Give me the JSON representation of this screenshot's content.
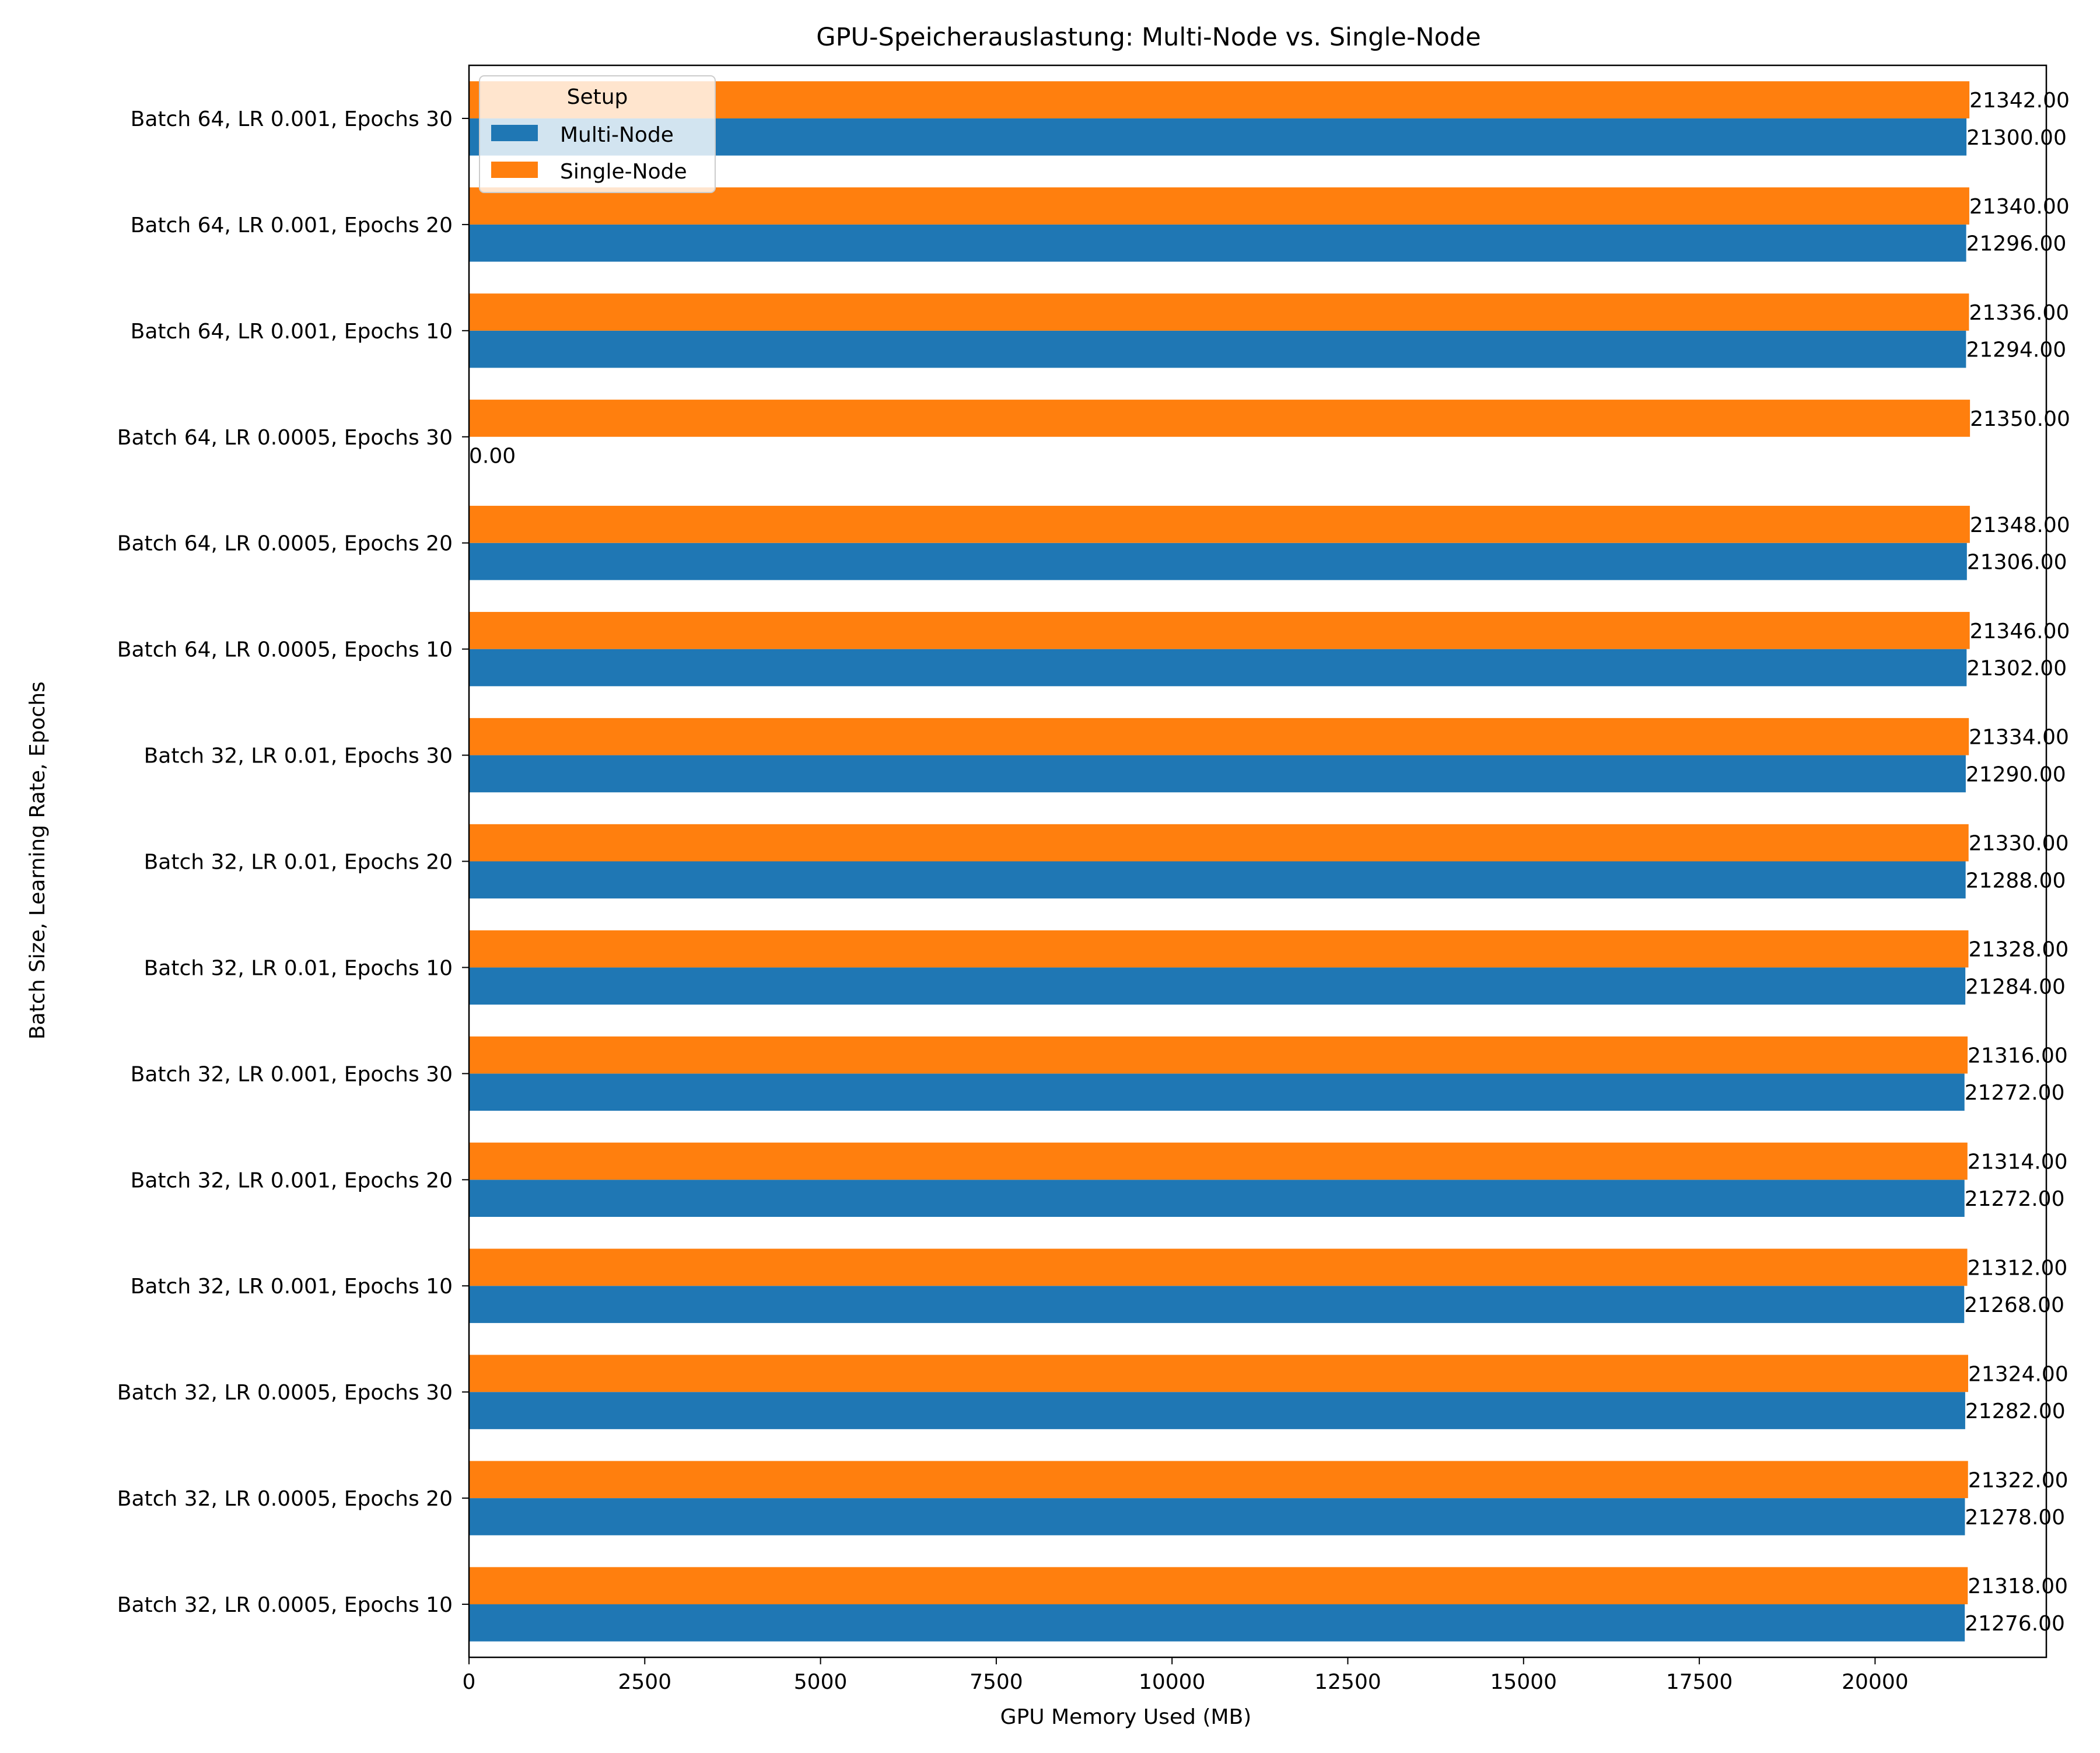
{
  "chart_data": {
    "type": "bar",
    "orientation": "horizontal",
    "title": "GPU-Speicherauslastung: Multi-Node vs. Single-Node",
    "xlabel": "GPU Memory Used (MB)",
    "ylabel": "Batch Size, Learning Rate, Epochs",
    "xlim": [
      0,
      22436
    ],
    "xticks": [
      0,
      2500,
      5000,
      7500,
      10000,
      12500,
      15000,
      17500,
      20000
    ],
    "xtick_labels": [
      "0",
      "2500",
      "5000",
      "7500",
      "10000",
      "12500",
      "15000",
      "17500",
      "20000"
    ],
    "grid": false,
    "legend": {
      "title": "Setup",
      "placement": "top-left"
    },
    "categories": [
      "Batch 32, LR 0.0005, Epochs 10",
      "Batch 32, LR 0.0005, Epochs 20",
      "Batch 32, LR 0.0005, Epochs 30",
      "Batch 32, LR 0.001, Epochs 10",
      "Batch 32, LR 0.001, Epochs 20",
      "Batch 32, LR 0.001, Epochs 30",
      "Batch 32, LR 0.01, Epochs 10",
      "Batch 32, LR 0.01, Epochs 20",
      "Batch 32, LR 0.01, Epochs 30",
      "Batch 64, LR 0.0005, Epochs 10",
      "Batch 64, LR 0.0005, Epochs 20",
      "Batch 64, LR 0.0005, Epochs 30",
      "Batch 64, LR 0.001, Epochs 10",
      "Batch 64, LR 0.001, Epochs 20",
      "Batch 64, LR 0.001, Epochs 30"
    ],
    "series": [
      {
        "name": "Multi-Node",
        "color": "#1f77b4",
        "values": [
          21276,
          21278,
          21282,
          21268,
          21272,
          21272,
          21284,
          21288,
          21290,
          21302,
          21306,
          0,
          21294,
          21296,
          21300
        ],
        "labels": [
          "21276.00",
          "21278.00",
          "21282.00",
          "21268.00",
          "21272.00",
          "21272.00",
          "21284.00",
          "21288.00",
          "21290.00",
          "21302.00",
          "21306.00",
          "0.00",
          "21294.00",
          "21296.00",
          "21300.00"
        ]
      },
      {
        "name": "Single-Node",
        "color": "#ff7f0e",
        "values": [
          21318,
          21322,
          21324,
          21312,
          21314,
          21316,
          21328,
          21330,
          21334,
          21346,
          21348,
          21350,
          21336,
          21340,
          21342
        ],
        "labels": [
          "21318.00",
          "21322.00",
          "21324.00",
          "21312.00",
          "21314.00",
          "21316.00",
          "21328.00",
          "21330.00",
          "21334.00",
          "21346.00",
          "21348.00",
          "21350.00",
          "21336.00",
          "21340.00",
          "21342.00"
        ]
      }
    ]
  }
}
